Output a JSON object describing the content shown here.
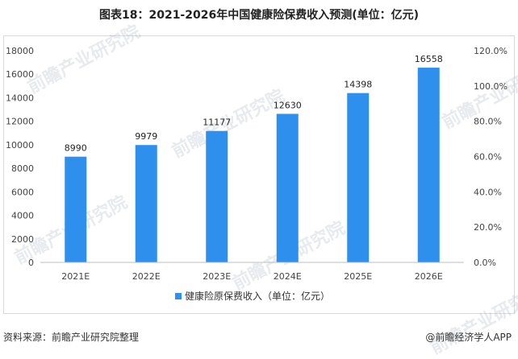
{
  "title": "图表18：2021-2026年中国健康险保费收入预测(单位：亿元)",
  "footer": {
    "source": "资料来源：前瞻产业研究院整理",
    "brand": "@前瞻经济学人APP"
  },
  "watermark": "前瞻产业研究院",
  "colors": {
    "bar": "#2e8fec",
    "axis": "#333333",
    "frame": "#d9d9d9"
  },
  "chart_data": {
    "type": "bar",
    "categories": [
      "2021E",
      "2022E",
      "2023E",
      "2024E",
      "2025E",
      "2026E"
    ],
    "series": [
      {
        "name": "健康险原保费收入（单位：亿元）",
        "values": [
          8990,
          9979,
          11177,
          12630,
          14398,
          16558
        ]
      }
    ],
    "y_ticks": [
      "0",
      "2000",
      "4000",
      "6000",
      "8000",
      "10000",
      "12000",
      "14000",
      "16000",
      "18000"
    ],
    "ylim": [
      0,
      18000
    ],
    "y2_ticks": [
      "0.0%",
      "20.0%",
      "40.0%",
      "60.0%",
      "80.0%",
      "100.0%",
      "120.0%"
    ],
    "y2lim": [
      0,
      120
    ],
    "legend_position": "bottom",
    "grid": false
  }
}
